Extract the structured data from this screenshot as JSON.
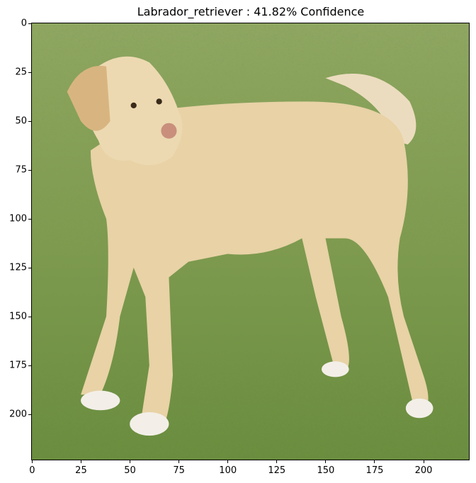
{
  "title": "Labrador_retriever : 41.82% Confidence",
  "image": {
    "subject": "labrador-retriever-dog-on-grass"
  },
  "axes": {
    "x_ticks": [
      "0",
      "25",
      "50",
      "75",
      "100",
      "125",
      "150",
      "175",
      "200"
    ],
    "y_ticks": [
      "0",
      "25",
      "50",
      "75",
      "100",
      "125",
      "150",
      "175",
      "200"
    ]
  },
  "colors": {
    "grass": "#7a9a4a",
    "fur": "#e6cfa3"
  }
}
